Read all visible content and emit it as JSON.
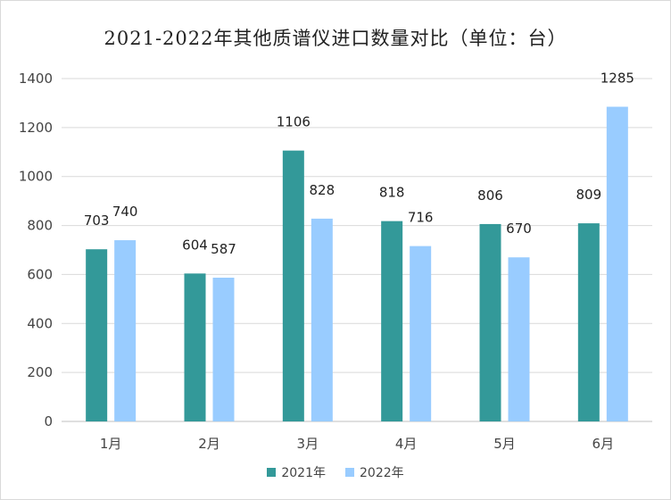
{
  "chart_data": {
    "type": "bar",
    "title": "2021-2022年其他质谱仪进口数量对比（单位：台）",
    "categories": [
      "1月",
      "2月",
      "3月",
      "4月",
      "5月",
      "6月"
    ],
    "series": [
      {
        "name": "2021年",
        "color": "#339999",
        "values": [
          703,
          604,
          1106,
          818,
          806,
          809
        ]
      },
      {
        "name": "2022年",
        "color": "#99ccff",
        "values": [
          740,
          587,
          828,
          716,
          670,
          1285
        ]
      }
    ],
    "ylim": [
      0,
      1400
    ],
    "yticks": [
      0,
      200,
      400,
      600,
      800,
      1000,
      1200,
      1400
    ],
    "grid": true,
    "legend_position": "bottom"
  }
}
